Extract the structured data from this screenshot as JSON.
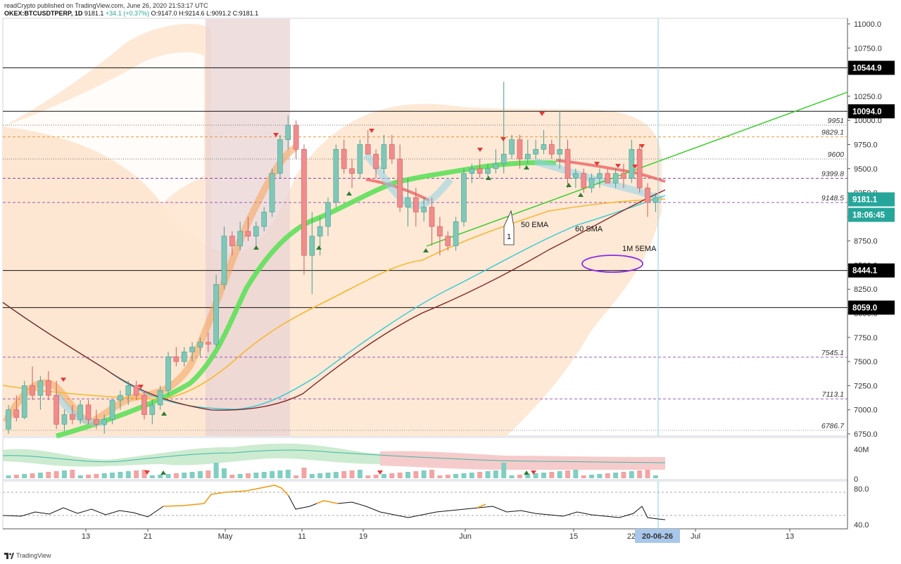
{
  "header": {
    "line1": "readCrypto published on TradingView.com, June 26, 2020 21:53:17 UTC",
    "symbol": "OKEX:BTCUSDTPERP, 1D",
    "last": "9181.1",
    "change": "+34.1 (+0.37%)",
    "open": "O:9147.0",
    "high": "H:9214.6",
    "low": "L:9091.2",
    "close": "C:9181.1"
  },
  "chart_data": {
    "type": "candlestick",
    "price_axis_ticks": [
      "11000.0",
      "10750.0",
      "10500.0",
      "10250.0",
      "10000.0",
      "9750.0",
      "9500.0",
      "9250.0",
      "9000.0",
      "8750.0",
      "8500.0",
      "8250.0",
      "8000.0",
      "7750.0",
      "7500.0",
      "7250.0",
      "7000.0",
      "6750.0"
    ],
    "ylim": [
      6750,
      11000
    ],
    "date_ticks": [
      "13",
      "21",
      "May",
      "11",
      "19",
      "Jun",
      "15",
      "22",
      "Jul",
      "13"
    ],
    "cursor_date": "20-06-26",
    "price_tags": [
      {
        "label": "10544.9",
        "value": 10544.9,
        "color": "#000000",
        "text": "#ffffff"
      },
      {
        "label": "10094.0",
        "value": 10094.0,
        "color": "#000000",
        "text": "#ffffff"
      },
      {
        "label": "9181.1",
        "value": 9181.1,
        "color": "#26a69a",
        "text": "#ffffff"
      },
      {
        "label": "18:06:45",
        "value": 9000,
        "color": "#26a69a",
        "text": "#ffffff"
      },
      {
        "label": "8444.1",
        "value": 8444.1,
        "color": "#000000",
        "text": "#ffffff"
      },
      {
        "label": "8059.0",
        "value": 8059.0,
        "color": "#000000",
        "text": "#ffffff"
      }
    ],
    "level_labels": [
      {
        "label": "9951",
        "value": 9951
      },
      {
        "label": "9829.1",
        "value": 9829.1
      },
      {
        "label": "9600",
        "value": 9600
      },
      {
        "label": "9399.8",
        "value": 9399.8
      },
      {
        "label": "9148.5",
        "value": 9148.5
      },
      {
        "label": "7545.1",
        "value": 7545.1
      },
      {
        "label": "7113.1",
        "value": 7113.1
      },
      {
        "label": "6786.7",
        "value": 6786.7
      }
    ],
    "annotations": [
      {
        "text": "50 EMA"
      },
      {
        "text": "60 SMA"
      },
      {
        "text": "1M 5EMA"
      },
      {
        "text": "1"
      }
    ],
    "volume_axis_ticks": [
      "40M",
      "0"
    ],
    "oscillator_axis_ticks": [
      "80.0",
      "40.0"
    ],
    "candles_ohlc": [
      [
        6800,
        7050,
        6750,
        7000
      ],
      [
        7000,
        7150,
        6880,
        6920
      ],
      [
        6920,
        7300,
        6900,
        7250
      ],
      [
        7250,
        7450,
        7100,
        7150
      ],
      [
        7150,
        7350,
        7000,
        7300
      ],
      [
        7300,
        7400,
        7100,
        7150
      ],
      [
        7150,
        7300,
        6800,
        6850
      ],
      [
        6850,
        7000,
        6780,
        6950
      ],
      [
        6950,
        7050,
        6850,
        6900
      ],
      [
        6900,
        7100,
        6850,
        7050
      ],
      [
        7050,
        7100,
        6850,
        6900
      ],
      [
        6900,
        7000,
        6800,
        6850
      ],
      [
        6850,
        6950,
        6750,
        6900
      ],
      [
        6900,
        7100,
        6850,
        7100
      ],
      [
        7100,
        7200,
        7000,
        7150
      ],
      [
        7150,
        7300,
        7050,
        7250
      ],
      [
        7250,
        7300,
        7100,
        7150
      ],
      [
        7150,
        7200,
        6900,
        6950
      ],
      [
        6950,
        7100,
        6850,
        7050
      ],
      [
        7050,
        7250,
        7000,
        7200
      ],
      [
        7200,
        7600,
        7150,
        7550
      ],
      [
        7550,
        7650,
        7450,
        7500
      ],
      [
        7500,
        7650,
        7450,
        7600
      ],
      [
        7600,
        7700,
        7500,
        7650
      ],
      [
        7650,
        7750,
        7550,
        7700
      ],
      [
        7700,
        7800,
        7600,
        7680
      ],
      [
        7680,
        8400,
        7650,
        8300
      ],
      [
        8300,
        8900,
        8250,
        8800
      ],
      [
        8800,
        8850,
        8600,
        8700
      ],
      [
        8700,
        8950,
        8650,
        8850
      ],
      [
        8850,
        9000,
        8750,
        8800
      ],
      [
        8800,
        8950,
        8700,
        8900
      ],
      [
        8900,
        9100,
        8850,
        9050
      ],
      [
        9050,
        9500,
        9000,
        9450
      ],
      [
        9450,
        9850,
        9400,
        9800
      ],
      [
        9800,
        10050,
        9700,
        9950
      ],
      [
        9950,
        10000,
        9600,
        9700
      ],
      [
        9700,
        9750,
        8400,
        8600
      ],
      [
        8600,
        9050,
        8200,
        8800
      ],
      [
        8800,
        9000,
        8600,
        8900
      ],
      [
        8900,
        9200,
        8800,
        9150
      ],
      [
        9150,
        9750,
        9100,
        9700
      ],
      [
        9700,
        9800,
        9450,
        9500
      ],
      [
        9500,
        9600,
        9300,
        9450
      ],
      [
        9450,
        9800,
        9400,
        9750
      ],
      [
        9750,
        9900,
        9650,
        9650
      ],
      [
        9650,
        9700,
        9400,
        9500
      ],
      [
        9500,
        9850,
        9450,
        9750
      ],
      [
        9750,
        9850,
        9550,
        9600
      ],
      [
        9600,
        9750,
        9050,
        9100
      ],
      [
        9100,
        9400,
        8900,
        9200
      ],
      [
        9200,
        9300,
        8900,
        9050
      ],
      [
        9050,
        9200,
        8950,
        9100
      ],
      [
        9100,
        9200,
        8700,
        8900
      ],
      [
        8900,
        9000,
        8600,
        8800
      ],
      [
        8800,
        8850,
        8650,
        8700
      ],
      [
        8700,
        9000,
        8650,
        8950
      ],
      [
        8950,
        9500,
        8900,
        9450
      ],
      [
        9450,
        9550,
        9350,
        9500
      ],
      [
        9500,
        9600,
        9400,
        9450
      ],
      [
        9450,
        9550,
        9400,
        9500
      ],
      [
        9500,
        9700,
        9450,
        9550
      ],
      [
        9550,
        10400,
        9450,
        9650
      ],
      [
        9650,
        9850,
        9600,
        9800
      ],
      [
        9800,
        9850,
        9500,
        9600
      ],
      [
        9600,
        9800,
        9550,
        9650
      ],
      [
        9650,
        9800,
        9600,
        9700
      ],
      [
        9700,
        9900,
        9650,
        9750
      ],
      [
        9750,
        9800,
        9600,
        9650
      ],
      [
        9650,
        10100,
        9500,
        9700
      ],
      [
        9700,
        9800,
        9300,
        9400
      ],
      [
        9400,
        9500,
        9300,
        9450
      ],
      [
        9450,
        9500,
        9250,
        9300
      ],
      [
        9300,
        9450,
        9250,
        9400
      ],
      [
        9400,
        9500,
        9300,
        9450
      ],
      [
        9450,
        9500,
        9350,
        9350
      ],
      [
        9350,
        9500,
        9300,
        9450
      ],
      [
        9450,
        9550,
        9300,
        9400
      ],
      [
        9400,
        9800,
        9350,
        9700
      ],
      [
        9700,
        9750,
        9250,
        9300
      ],
      [
        9300,
        9350,
        9000,
        9150
      ],
      [
        9150,
        9250,
        9050,
        9200
      ]
    ]
  }
}
